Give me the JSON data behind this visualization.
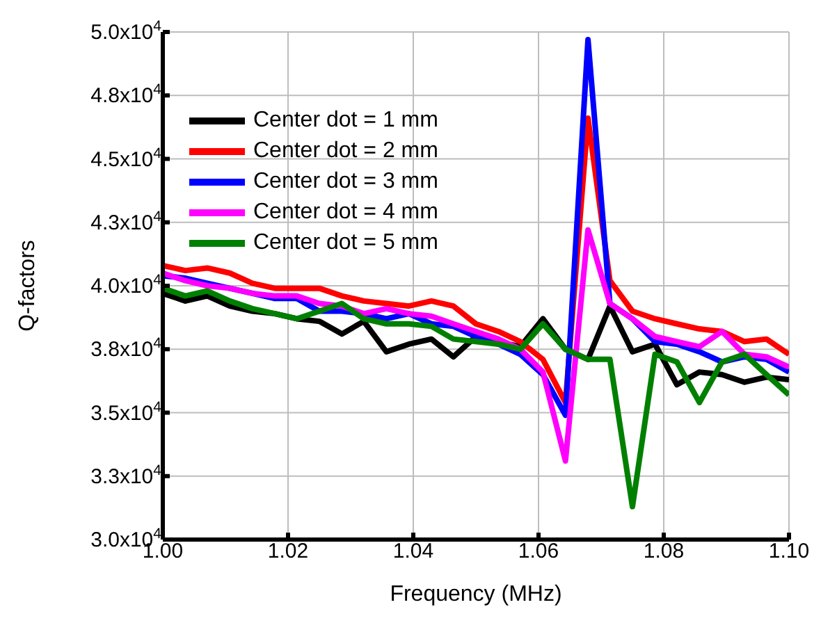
{
  "chart_data": {
    "type": "line",
    "xlabel": "Frequency (MHz)",
    "ylabel": "Q-factors",
    "x": [
      1.0,
      1.0036,
      1.0071,
      1.0107,
      1.0143,
      1.0179,
      1.0214,
      1.025,
      1.0286,
      1.0321,
      1.0357,
      1.0393,
      1.0429,
      1.0464,
      1.05,
      1.0536,
      1.0571,
      1.0607,
      1.0643,
      1.0679,
      1.0714,
      1.075,
      1.0786,
      1.0821,
      1.0857,
      1.0893,
      1.0929,
      1.0964,
      1.1
    ],
    "series": [
      {
        "name": "Center dot = 1 mm",
        "color": "#000000",
        "values": [
          39700,
          39400,
          39600,
          39200,
          39000,
          38900,
          38700,
          38600,
          38100,
          38600,
          37400,
          37700,
          37900,
          37200,
          38000,
          37800,
          37600,
          38700,
          37500,
          37100,
          39200,
          37400,
          37700,
          36100,
          36600,
          36500,
          36200,
          36400,
          36300
        ]
      },
      {
        "name": "Center dot = 2 mm",
        "color": "#ff0000",
        "values": [
          40800,
          40600,
          40700,
          40500,
          40100,
          39900,
          39900,
          39900,
          39600,
          39400,
          39300,
          39200,
          39400,
          39200,
          38500,
          38200,
          37800,
          37100,
          35400,
          46600,
          40200,
          39000,
          38700,
          38500,
          38300,
          38200,
          37800,
          37900,
          37300
        ]
      },
      {
        "name": "Center dot = 3 mm",
        "color": "#0000ff",
        "values": [
          40400,
          40300,
          40100,
          39900,
          39700,
          39500,
          39500,
          39000,
          39000,
          38900,
          38700,
          38900,
          38500,
          38400,
          38000,
          37700,
          37300,
          36500,
          34900,
          49700,
          39300,
          38700,
          37800,
          37700,
          37400,
          37000,
          37200,
          37100,
          36600
        ]
      },
      {
        "name": "Center dot = 4 mm",
        "color": "#ff00ff",
        "values": [
          40500,
          40200,
          40000,
          39900,
          39700,
          39600,
          39600,
          39300,
          39200,
          38900,
          39100,
          38900,
          38800,
          38500,
          38200,
          37900,
          37500,
          36600,
          33100,
          42200,
          39300,
          38700,
          38000,
          37800,
          37600,
          38200,
          37300,
          37200,
          36800
        ]
      },
      {
        "name": "Center dot = 5 mm",
        "color": "#008000",
        "values": [
          39900,
          39600,
          39800,
          39400,
          39100,
          38900,
          38700,
          39000,
          39300,
          38700,
          38500,
          38500,
          38400,
          37900,
          37800,
          37700,
          37500,
          38500,
          37500,
          37100,
          37100,
          31300,
          37300,
          37000,
          35400,
          37000,
          37300,
          36500,
          35700
        ]
      }
    ],
    "xlim": [
      1.0,
      1.1
    ],
    "xticks": [
      {
        "value": 1.0,
        "label": "1.00"
      },
      {
        "value": 1.02,
        "label": "1.02"
      },
      {
        "value": 1.04,
        "label": "1.04"
      },
      {
        "value": 1.06,
        "label": "1.06"
      },
      {
        "value": 1.08,
        "label": "1.08"
      },
      {
        "value": 1.1,
        "label": "1.10"
      }
    ],
    "ylim": [
      30000,
      50000
    ],
    "yticks": [
      {
        "value": 30000,
        "label": "3.0x10$^{4}$"
      },
      {
        "value": 32500,
        "label": "3.3x10$^{4}$"
      },
      {
        "value": 35000,
        "label": "3.5x10$^{4}$"
      },
      {
        "value": 37500,
        "label": "3.8x10$^{4}$"
      },
      {
        "value": 40000,
        "label": "4.0x10$^{4}$"
      },
      {
        "value": 42500,
        "label": "4.3x10$^{4}$"
      },
      {
        "value": 45000,
        "label": "4.5x10$^{4}$"
      },
      {
        "value": 47500,
        "label": "4.8x10$^{4}$"
      },
      {
        "value": 50000,
        "label": "5.0x10$^{4}$"
      }
    ],
    "grid": true,
    "legend": "top left",
    "marker": "none",
    "line_style": "solid"
  }
}
